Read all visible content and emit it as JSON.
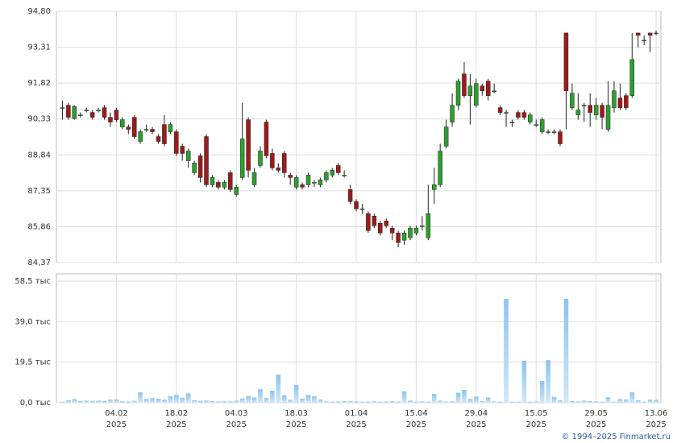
{
  "chart_data": {
    "type": "candlestick",
    "categories": [
      null,
      null,
      null,
      null,
      null,
      null,
      null,
      null,
      null,
      "04.02",
      null,
      null,
      null,
      null,
      null,
      null,
      null,
      null,
      null,
      "18.02",
      null,
      null,
      null,
      null,
      null,
      null,
      null,
      null,
      null,
      "04.03",
      null,
      null,
      null,
      null,
      null,
      null,
      null,
      null,
      null,
      "18.03",
      null,
      null,
      null,
      null,
      null,
      null,
      null,
      null,
      null,
      "01.04",
      null,
      null,
      null,
      null,
      null,
      null,
      null,
      null,
      null,
      "15.04",
      null,
      null,
      null,
      null,
      null,
      null,
      null,
      null,
      null,
      "29.04",
      null,
      null,
      null,
      null,
      null,
      null,
      null,
      null,
      null,
      "15.05",
      null,
      null,
      null,
      null,
      null,
      null,
      null,
      null,
      null,
      "29.05",
      null,
      null,
      null,
      null,
      null,
      null,
      null,
      null,
      null,
      "13.06"
    ],
    "x_sublabel": "2025",
    "open": [
      90.8,
      90.9,
      90.35,
      90.5,
      90.7,
      90.6,
      90.7,
      90.8,
      90.4,
      90.7,
      90.0,
      90.0,
      90.4,
      89.4,
      89.9,
      89.9,
      89.6,
      90.1,
      89.8,
      89.8,
      89.2,
      88.6,
      88.1,
      88.8,
      89.6,
      87.6,
      87.7,
      87.5,
      88.1,
      87.2,
      87.9,
      90.3,
      87.6,
      88.4,
      90.2,
      88.9,
      88.3,
      88.9,
      88.0,
      87.5,
      87.6,
      87.6,
      87.7,
      87.6,
      87.8,
      88.0,
      88.4,
      88.0,
      87.4,
      86.9,
      86.6,
      86.4,
      86.3,
      86.0,
      86.1,
      85.8,
      85.6,
      85.3,
      85.4,
      85.6,
      85.9,
      85.4,
      87.4,
      87.6,
      89.2,
      90.2,
      90.9,
      92.2,
      91.3,
      90.9,
      91.7,
      91.9,
      91.5,
      90.8,
      90.6,
      90.2,
      90.6,
      90.6,
      90.2,
      90.1,
      89.8,
      89.8,
      89.8,
      89.8,
      93.9,
      90.8,
      90.5,
      90.9,
      90.9,
      90.5,
      90.9,
      89.9,
      90.8,
      91.2,
      91.3,
      91.3,
      93.9,
      93.6,
      93.9,
      93.9
    ],
    "high": [
      91.1,
      91.0,
      90.9,
      90.6,
      90.8,
      90.7,
      90.8,
      90.9,
      90.6,
      90.8,
      90.4,
      90.1,
      90.5,
      89.9,
      90.1,
      90.0,
      89.7,
      90.5,
      90.2,
      89.9,
      89.3,
      89.1,
      88.6,
      88.9,
      89.7,
      88.0,
      87.8,
      87.8,
      88.2,
      87.6,
      91.0,
      90.4,
      88.3,
      89.2,
      90.3,
      89.1,
      88.5,
      89.0,
      88.1,
      88.0,
      87.7,
      88.1,
      87.8,
      87.9,
      88.2,
      88.3,
      88.5,
      88.2,
      87.6,
      87.0,
      86.8,
      86.5,
      86.4,
      86.1,
      86.2,
      85.9,
      85.7,
      85.7,
      85.9,
      85.9,
      86.3,
      87.6,
      88.3,
      89.3,
      90.3,
      91.4,
      92.0,
      92.7,
      92.2,
      92.0,
      91.8,
      92.0,
      91.8,
      90.9,
      90.7,
      90.3,
      90.7,
      90.7,
      90.6,
      90.3,
      90.4,
      89.9,
      89.9,
      89.9,
      93.9,
      91.8,
      91.4,
      91.0,
      91.4,
      91.2,
      91.0,
      91.9,
      91.9,
      91.8,
      91.4,
      93.9,
      93.9,
      93.8,
      93.9,
      94.0
    ],
    "low": [
      90.3,
      90.3,
      90.3,
      90.4,
      90.6,
      90.3,
      90.6,
      90.3,
      90.0,
      90.2,
      89.9,
      89.7,
      89.5,
      89.3,
      89.8,
      89.7,
      89.3,
      89.2,
      89.7,
      88.8,
      88.6,
      88.3,
      88.0,
      87.7,
      87.5,
      87.5,
      87.4,
      87.4,
      87.3,
      87.1,
      87.8,
      87.9,
      87.5,
      88.3,
      88.7,
      88.2,
      88.1,
      87.9,
      87.6,
      87.4,
      87.4,
      87.5,
      87.5,
      87.5,
      87.7,
      87.9,
      88.0,
      87.9,
      86.8,
      86.5,
      86.4,
      85.6,
      85.8,
      85.5,
      85.8,
      85.3,
      85.0,
      85.1,
      85.3,
      85.5,
      85.7,
      85.3,
      86.8,
      87.5,
      89.1,
      90.0,
      90.7,
      91.2,
      90.1,
      90.8,
      91.3,
      91.1,
      91.4,
      90.5,
      90.0,
      90.0,
      90.3,
      90.3,
      90.1,
      90.0,
      89.7,
      89.7,
      89.7,
      89.2,
      89.9,
      90.7,
      90.3,
      90.2,
      90.0,
      90.3,
      89.9,
      89.8,
      90.6,
      90.7,
      90.7,
      91.2,
      93.3,
      93.4,
      93.1,
      93.8
    ],
    "close": [
      90.8,
      90.4,
      90.85,
      90.5,
      90.7,
      90.4,
      90.7,
      90.4,
      90.2,
      90.3,
      90.3,
      89.9,
      89.6,
      89.8,
      89.9,
      89.8,
      89.4,
      89.3,
      90.1,
      88.9,
      88.9,
      89.0,
      88.5,
      87.9,
      87.6,
      87.9,
      87.5,
      87.7,
      87.4,
      87.5,
      89.5,
      88.2,
      88.1,
      89.0,
      88.8,
      88.3,
      88.2,
      88.1,
      87.9,
      87.9,
      87.5,
      88.0,
      87.7,
      87.8,
      88.1,
      88.2,
      88.1,
      88.0,
      86.9,
      86.6,
      86.6,
      85.7,
      85.9,
      85.6,
      85.9,
      85.6,
      85.2,
      85.6,
      85.8,
      85.8,
      85.9,
      86.4,
      87.6,
      89.0,
      90.0,
      90.9,
      91.9,
      91.3,
      91.7,
      91.8,
      91.5,
      91.3,
      91.5,
      90.6,
      90.6,
      90.2,
      90.4,
      90.4,
      90.5,
      90.1,
      90.3,
      89.8,
      89.8,
      89.3,
      91.5,
      91.4,
      90.7,
      90.9,
      90.6,
      90.9,
      90.4,
      90.9,
      91.5,
      90.8,
      90.8,
      92.8,
      93.8,
      93.6,
      93.8,
      93.9
    ],
    "up_color": "#2e9e2e",
    "down_color": "#9c1b1b",
    "ylim": [
      84.37,
      94.8
    ],
    "yticks": [
      {
        "value": 84.37,
        "label": "84,37"
      },
      {
        "value": 85.86,
        "label": "85,86"
      },
      {
        "value": 87.35,
        "label": "87,35"
      },
      {
        "value": 88.84,
        "label": "88,84"
      },
      {
        "value": 90.33,
        "label": "90,33"
      },
      {
        "value": 91.82,
        "label": "91,82"
      },
      {
        "value": 93.31,
        "label": "93,31"
      },
      {
        "value": 94.8,
        "label": "94,80"
      }
    ],
    "volume": [
      0.5,
      1.2,
      1.8,
      0.8,
      1.0,
      0.9,
      1.0,
      0.8,
      1.5,
      1.6,
      0.7,
      0.6,
      0.9,
      5.0,
      1.8,
      2.2,
      2.0,
      1.5,
      3.2,
      3.8,
      2.4,
      4.5,
      1.2,
      0.9,
      1.0,
      0.8,
      0.6,
      0.7,
      0.6,
      1.0,
      2.0,
      3.2,
      2.5,
      6.5,
      2.2,
      5.8,
      13.5,
      3.6,
      1.4,
      8.5,
      2.0,
      3.8,
      3.1,
      1.6,
      0.6,
      0.5,
      0.6,
      0.8,
      0.7,
      0.6,
      0.5,
      0.6,
      0.7,
      0.5,
      0.6,
      0.8,
      0.6,
      5.5,
      1.0,
      0.5,
      0.6,
      0.5,
      4.2,
      1.0,
      0.5,
      0.6,
      4.8,
      6.2,
      1.8,
      3.0,
      0.8,
      2.5,
      0.6,
      0.5,
      50.0,
      0.5,
      0.5,
      20.2,
      0.5,
      0.6,
      10.5,
      20.5,
      2.8,
      1.2,
      50.0,
      0.8,
      0.6,
      1.0,
      0.8,
      0.6,
      0.5,
      2.6,
      0.5,
      1.8,
      1.6,
      5.0,
      1.2,
      0.5,
      1.5,
      1.4
    ],
    "volume_color": "#8cc4ee",
    "volume_ylim": [
      0,
      62
    ],
    "volume_yticks": [
      {
        "value": 0,
        "label": "0,0 тыс"
      },
      {
        "value": 19.5,
        "label": "19,5 тыс"
      },
      {
        "value": 39.0,
        "label": "39,0 тыс"
      },
      {
        "value": 58.5,
        "label": "58,5 тыс"
      }
    ],
    "grid": true
  },
  "footer": {
    "copyright": "© 1994–2025 Finmarket.ru"
  }
}
